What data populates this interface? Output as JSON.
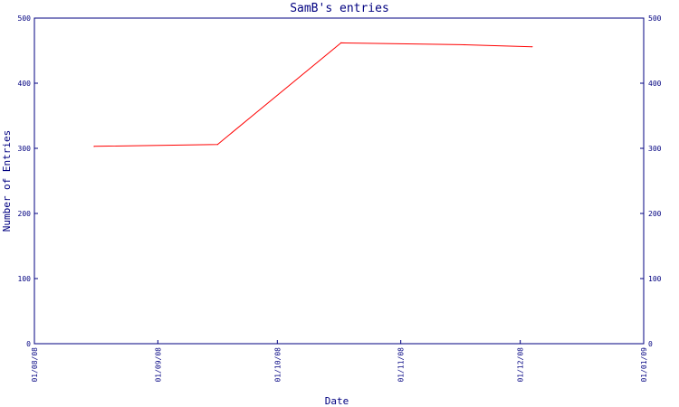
{
  "chart_data": {
    "type": "line",
    "title": "SamB's entries",
    "xlabel": "Date",
    "ylabel": "Number of Entries",
    "x_ticks": [
      "01/08/08",
      "01/09/08",
      "01/10/08",
      "01/11/08",
      "01/12/08",
      "01/01/09"
    ],
    "y_ticks": [
      "0",
      "100",
      "200",
      "300",
      "400",
      "500"
    ],
    "xlim": [
      "01/08/08",
      "01/01/09"
    ],
    "ylim": [
      0,
      500
    ],
    "grid": false,
    "y_axis_both_sides": true,
    "series": [
      {
        "color": "#ff0000",
        "points": [
          {
            "x": "16/08/08",
            "y": 303
          },
          {
            "x": "16/09/08",
            "y": 306
          },
          {
            "x": "17/10/08",
            "y": 462
          },
          {
            "x": "17/11/08",
            "y": 459
          },
          {
            "x": "04/12/08",
            "y": 456
          }
        ]
      }
    ],
    "colors": {
      "axis": "#000080",
      "text": "#000080",
      "line": "#ff0000"
    }
  }
}
